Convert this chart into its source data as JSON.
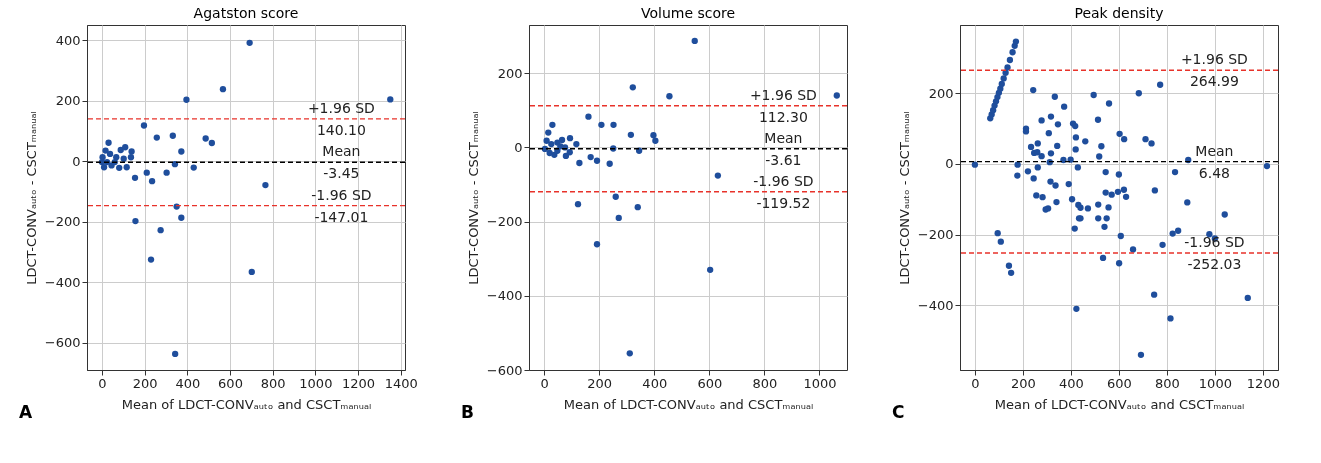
{
  "chart_data": [
    {
      "type": "scatter",
      "title": "Agatston score",
      "xlabel": "Mean of LDCT-CONVₐᵤₜₒ and CSCTₘₐₙᵤₐₗ",
      "ylabel": "LDCT-CONVₐᵤₜₒ - CSCTₘₐₙᵤₐₗ",
      "marker": "circle",
      "grid": true,
      "xlim": [
        -70,
        1420
      ],
      "ylim": [
        -690,
        450
      ],
      "xticks": [
        0,
        200,
        400,
        600,
        800,
        1000,
        1200,
        1400
      ],
      "yticks": [
        -600,
        -400,
        -200,
        0,
        200,
        400
      ],
      "series": [
        {
          "color": "#1f4e9c",
          "x": [
            692,
            567,
            396,
            1351,
            197,
            257,
            332,
            486,
            515,
            372,
            430,
            342,
            303,
            210,
            235,
            155,
            766,
            350,
            157,
            372,
            275,
            230,
            702,
            343,
            31,
            17,
            3,
            0,
            10,
            45,
            81,
            88,
            109,
            139,
            136,
            116,
            67,
            38,
            24,
            60,
            102
          ],
          "values": [
            391,
            238,
            203,
            204,
            118,
            78,
            84,
            75,
            60,
            32,
            -21,
            -10,
            -38,
            -38,
            -66,
            -55,
            -79,
            -150,
            -198,
            -187,
            -228,
            -325,
            -366,
            -637,
            61,
            35,
            13,
            -3,
            -20,
            -14,
            -22,
            37,
            46,
            32,
            13,
            -20,
            13,
            24,
            -3,
            -3,
            8
          ]
        }
      ],
      "ref_lines": [
        {
          "axis": "y",
          "value": 140.1,
          "label": "+1.96 SD",
          "color": "#e8322a",
          "line_style": "dashed"
        },
        {
          "axis": "y",
          "value": -3.45,
          "label": "Mean",
          "color": "#000000",
          "line_style": "dashed"
        },
        {
          "axis": "y",
          "value": -147.01,
          "label": "-1.96 SD",
          "color": "#e8322a",
          "line_style": "dashed"
        }
      ],
      "annotations": [
        {
          "text": "140.10",
          "y": 140.1
        },
        {
          "text": "-3.45",
          "y": -3.45
        },
        {
          "text": "-147.01",
          "y": -147.01
        },
        "A"
      ]
    },
    {
      "type": "scatter",
      "title": "Volume score",
      "xlabel": "Mean of LDCT-CONVₐᵤₜₒ and CSCTₘₐₙᵤₐₗ",
      "ylabel": "LDCT-CONVₐᵤₜₒ - CSCTₘₐₙᵤₐₗ",
      "marker": "circle",
      "grid": true,
      "xlim": [
        -55,
        1100
      ],
      "ylim": [
        -600,
        330
      ],
      "xticks": [
        0,
        200,
        400,
        600,
        800,
        1000
      ],
      "yticks": [
        -600,
        -400,
        -200,
        0,
        200
      ],
      "series": [
        {
          "color": "#1f4e9c",
          "x": [
            547,
            322,
            455,
            1063,
            161,
            208,
            252,
            30,
            315,
            397,
            404,
            94,
            117,
            251,
            345,
            128,
            169,
            192,
            238,
            631,
            123,
            260,
            340,
            271,
            192,
            603,
            311,
            15,
            9,
            3,
            20,
            37,
            48,
            65,
            76,
            79,
            93,
            26,
            48,
            59
          ],
          "values": [
            287,
            162,
            138,
            140,
            83,
            61,
            61,
            61,
            34,
            33,
            18,
            25,
            9,
            -3,
            -9,
            -42,
            -26,
            -36,
            -44,
            -76,
            -153,
            -133,
            -161,
            -190,
            -261,
            -330,
            -555,
            40,
            18,
            -4,
            -15,
            -20,
            -9,
            20,
            0,
            -23,
            -13,
            9,
            13,
            3
          ]
        }
      ],
      "ref_lines": [
        {
          "axis": "y",
          "value": 112.3,
          "label": "+1.96 SD",
          "color": "#e8322a",
          "line_style": "dashed"
        },
        {
          "axis": "y",
          "value": -3.61,
          "label": "Mean",
          "color": "#000000",
          "line_style": "dashed"
        },
        {
          "axis": "y",
          "value": -119.52,
          "label": "-1.96 SD",
          "color": "#e8322a",
          "line_style": "dashed"
        }
      ],
      "annotations": [
        {
          "text": "112.30",
          "y": 112.3
        },
        {
          "text": "-3.61",
          "y": -3.61
        },
        {
          "text": "-119.52",
          "y": -119.52
        },
        "B"
      ]
    },
    {
      "type": "scatter",
      "title": "Peak density",
      "xlabel": "Mean of LDCT-CONVₐᵤₜₒ and CSCTₘₐₙᵤₐₗ",
      "ylabel": "LDCT-CONVₐᵤₜₒ - CSCTₘₐₙᵤₐₗ",
      "marker": "circle",
      "grid": true,
      "xlim": [
        -62,
        1263
      ],
      "ylim": [
        -583,
        393
      ],
      "xticks": [
        0,
        200,
        400,
        600,
        800,
        1000,
        1200
      ],
      "yticks": [
        -400,
        -200,
        0,
        200
      ],
      "series": [
        {
          "color": "#1f4e9c",
          "x": [
            64,
            70,
            76,
            82,
            88,
            94,
            100,
            106,
            112,
            120,
            128,
            136,
            146,
            157,
            166,
            171,
            0,
            243,
            333,
            372,
            278,
            317,
            346,
            213,
            213,
            234,
            262,
            247,
            260,
            278,
            308,
            317,
            343,
            312,
            369,
            399,
            409,
            418,
            421,
            420,
            460,
            495,
            513,
            527,
            518,
            559,
            683,
            772,
            603,
            622,
            711,
            736,
            889,
            1217,
            178,
            177,
            221,
            245,
            262,
            256,
            282,
            295,
            305,
            315,
            336,
            340,
            391,
            405,
            429,
            431,
            440,
            434,
            440,
            471,
            416,
            545,
            545,
            570,
            514,
            557,
            514,
            549,
            540,
            600,
            596,
            621,
            630,
            608,
            659,
            534,
            601,
            750,
            834,
            885,
            824,
            847,
            782,
            977,
            1000,
            1041,
            95,
            108,
            142,
            151,
            747,
            815,
            1137,
            423,
            692
          ],
          "values": [
            129,
            140,
            152,
            165,
            177,
            189,
            201,
            213,
            226,
            242,
            258,
            273,
            294,
            316,
            334,
            346,
            -2,
            209,
            190,
            162,
            123,
            134,
            112,
            100,
            92,
            48,
            58,
            31,
            33,
            22,
            87,
            30,
            51,
            5,
            11,
            12,
            114,
            107,
            75,
            41,
            64,
            195,
            125,
            50,
            21,
            171,
            200,
            224,
            85,
            70,
            70,
            58,
            11,
            -6,
            -2,
            -33,
            -21,
            -41,
            -10,
            -89,
            -94,
            -129,
            -126,
            -50,
            -61,
            -108,
            -57,
            -100,
            -10,
            -116,
            -124,
            -154,
            -154,
            -126,
            -183,
            -23,
            -81,
            -87,
            -115,
            -123,
            -154,
            -154,
            -178,
            -30,
            -79,
            -73,
            -93,
            -204,
            -242,
            -266,
            -281,
            -75,
            -23,
            -109,
            -197,
            -189,
            -229,
            -199,
            -211,
            -143,
            -196,
            -220,
            -288,
            -308,
            -370,
            -437,
            -379,
            -410,
            -540
          ]
        }
      ],
      "ref_lines": [
        {
          "axis": "y",
          "value": 264.99,
          "label": "+1.96 SD",
          "color": "#e8322a",
          "line_style": "dashed"
        },
        {
          "axis": "y",
          "value": 6.48,
          "label": "Mean",
          "color": "#000000",
          "line_style": "dashed"
        },
        {
          "axis": "y",
          "value": -252.03,
          "label": "-1.96 SD",
          "color": "#e8322a",
          "line_style": "dashed"
        }
      ],
      "annotations": [
        {
          "text": "264.99",
          "y": 264.99
        },
        {
          "text": "6.48",
          "y": 6.48
        },
        {
          "text": "-252.03",
          "y": -252.03
        },
        "C"
      ]
    }
  ]
}
